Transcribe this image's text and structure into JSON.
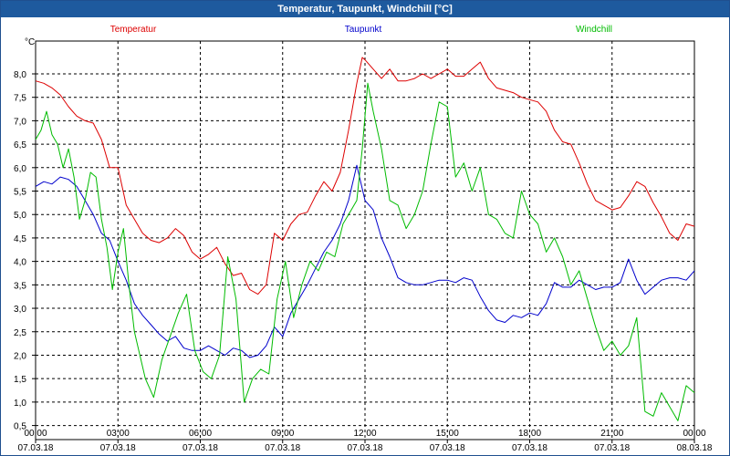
{
  "window": {
    "title": "Temperatur, Taupunkt, Windchill [°C]"
  },
  "chart_data": {
    "type": "line",
    "title": "Temperatur, Taupunkt, Windchill [°C]",
    "ylabel": "°C",
    "xlabel": "",
    "ylim": [
      0.2,
      8.7
    ],
    "xlim": [
      0,
      24
    ],
    "grid": true,
    "legend_placement": "top",
    "y_ticks": [
      "0,5",
      "1,0",
      "1,5",
      "2,0",
      "2,5",
      "3,0",
      "3,5",
      "4,0",
      "4,5",
      "5,0",
      "5,5",
      "6,0",
      "6,5",
      "7,0",
      "7,5",
      "8,0"
    ],
    "x_ticks": [
      {
        "time": "00:00",
        "date": "07.03.18"
      },
      {
        "time": "03:00",
        "date": "07.03.18"
      },
      {
        "time": "06:00",
        "date": "07.03.18"
      },
      {
        "time": "09:00",
        "date": "07.03.18"
      },
      {
        "time": "12:00",
        "date": "07.03.18"
      },
      {
        "time": "15:00",
        "date": "07.03.18"
      },
      {
        "time": "18:00",
        "date": "07.03.18"
      },
      {
        "time": "21:00",
        "date": "07.03.18"
      },
      {
        "time": "00:00",
        "date": "08.03.18"
      }
    ],
    "series": [
      {
        "name": "Temperatur",
        "color": "#dd0000",
        "x": [
          0,
          0.3,
          0.6,
          0.9,
          1.2,
          1.5,
          1.8,
          2.1,
          2.4,
          2.7,
          3.0,
          3.3,
          3.6,
          3.9,
          4.2,
          4.5,
          4.8,
          5.1,
          5.4,
          5.7,
          6.0,
          6.3,
          6.6,
          6.9,
          7.2,
          7.5,
          7.8,
          8.1,
          8.4,
          8.7,
          9.0,
          9.3,
          9.6,
          9.9,
          10.2,
          10.5,
          10.8,
          11.1,
          11.4,
          11.7,
          11.9,
          12.0,
          12.3,
          12.6,
          12.9,
          13.2,
          13.5,
          13.8,
          14.1,
          14.4,
          14.7,
          15.0,
          15.3,
          15.6,
          15.9,
          16.2,
          16.5,
          16.8,
          17.1,
          17.4,
          17.7,
          18.0,
          18.3,
          18.6,
          18.9,
          19.2,
          19.5,
          19.8,
          20.1,
          20.4,
          20.7,
          21.0,
          21.3,
          21.6,
          21.9,
          22.2,
          22.5,
          22.8,
          23.1,
          23.4,
          23.7,
          24.0
        ],
        "values": [
          7.85,
          7.8,
          7.7,
          7.55,
          7.3,
          7.1,
          7.0,
          6.95,
          6.6,
          6.0,
          6.0,
          5.2,
          4.9,
          4.6,
          4.45,
          4.4,
          4.5,
          4.7,
          4.55,
          4.2,
          4.05,
          4.15,
          4.3,
          3.95,
          3.7,
          3.75,
          3.4,
          3.3,
          3.5,
          4.6,
          4.45,
          4.8,
          5.0,
          5.05,
          5.4,
          5.7,
          5.5,
          5.9,
          6.8,
          7.8,
          8.35,
          8.3,
          8.1,
          7.9,
          8.1,
          7.85,
          7.85,
          7.9,
          8.0,
          7.9,
          8.0,
          8.1,
          7.95,
          7.95,
          8.1,
          8.25,
          7.9,
          7.7,
          7.65,
          7.6,
          7.5,
          7.45,
          7.4,
          7.2,
          6.8,
          6.55,
          6.5,
          6.1,
          5.65,
          5.3,
          5.2,
          5.1,
          5.15,
          5.4,
          5.7,
          5.6,
          5.25,
          4.95,
          4.6,
          4.45,
          4.8,
          4.75
        ]
      },
      {
        "name": "Taupunkt",
        "color": "#0000cc",
        "x": [
          0,
          0.3,
          0.6,
          0.9,
          1.2,
          1.5,
          1.8,
          2.1,
          2.4,
          2.7,
          3.0,
          3.3,
          3.6,
          3.9,
          4.2,
          4.5,
          4.8,
          5.1,
          5.4,
          5.7,
          6.0,
          6.3,
          6.6,
          6.9,
          7.2,
          7.5,
          7.8,
          8.1,
          8.4,
          8.7,
          9.0,
          9.3,
          9.6,
          9.9,
          10.2,
          10.5,
          10.8,
          11.1,
          11.4,
          11.7,
          12.0,
          12.3,
          12.6,
          12.9,
          13.2,
          13.5,
          13.8,
          14.1,
          14.4,
          14.7,
          15.0,
          15.3,
          15.6,
          15.9,
          16.2,
          16.5,
          16.8,
          17.1,
          17.4,
          17.7,
          18.0,
          18.3,
          18.6,
          18.9,
          19.2,
          19.5,
          19.8,
          20.1,
          20.4,
          20.7,
          21.0,
          21.3,
          21.6,
          21.9,
          22.2,
          22.5,
          22.8,
          23.1,
          23.4,
          23.7,
          24.0
        ],
        "values": [
          5.6,
          5.7,
          5.65,
          5.8,
          5.75,
          5.6,
          5.3,
          5.0,
          4.6,
          4.45,
          4.0,
          3.6,
          3.1,
          2.85,
          2.65,
          2.45,
          2.3,
          2.4,
          2.15,
          2.1,
          2.1,
          2.2,
          2.1,
          2.0,
          2.15,
          2.1,
          1.95,
          2.0,
          2.2,
          2.6,
          2.4,
          2.9,
          3.2,
          3.5,
          3.85,
          4.2,
          4.45,
          4.8,
          5.3,
          6.05,
          5.3,
          5.1,
          4.5,
          4.1,
          3.65,
          3.55,
          3.5,
          3.5,
          3.55,
          3.6,
          3.6,
          3.55,
          3.65,
          3.6,
          3.25,
          2.95,
          2.75,
          2.7,
          2.85,
          2.8,
          2.9,
          2.85,
          3.1,
          3.55,
          3.45,
          3.45,
          3.6,
          3.5,
          3.4,
          3.45,
          3.45,
          3.55,
          4.05,
          3.6,
          3.3,
          3.45,
          3.6,
          3.65,
          3.65,
          3.6,
          3.8
        ]
      },
      {
        "name": "Windchill",
        "color": "#00bb00",
        "x": [
          0,
          0.2,
          0.4,
          0.6,
          0.8,
          1.0,
          1.2,
          1.4,
          1.6,
          1.8,
          2.0,
          2.2,
          2.4,
          2.6,
          2.8,
          3.0,
          3.2,
          3.4,
          3.6,
          3.8,
          4.0,
          4.3,
          4.6,
          4.9,
          5.2,
          5.5,
          5.8,
          6.1,
          6.4,
          6.7,
          7.0,
          7.3,
          7.6,
          7.9,
          8.2,
          8.5,
          8.8,
          9.1,
          9.4,
          9.7,
          10.0,
          10.3,
          10.6,
          10.9,
          11.2,
          11.5,
          11.7,
          11.9,
          12.1,
          12.3,
          12.6,
          12.9,
          13.2,
          13.5,
          13.8,
          14.1,
          14.4,
          14.7,
          15.0,
          15.3,
          15.6,
          15.9,
          16.2,
          16.5,
          16.8,
          17.1,
          17.4,
          17.7,
          18.0,
          18.3,
          18.6,
          18.9,
          19.2,
          19.5,
          19.8,
          20.1,
          20.4,
          20.7,
          21.0,
          21.3,
          21.6,
          21.9,
          22.2,
          22.5,
          22.8,
          23.1,
          23.4,
          23.7,
          24.0
        ],
        "values": [
          6.6,
          6.8,
          7.2,
          6.7,
          6.5,
          6.0,
          6.4,
          5.8,
          4.9,
          5.3,
          5.9,
          5.8,
          4.9,
          4.3,
          3.4,
          4.2,
          4.7,
          3.5,
          2.5,
          2.0,
          1.5,
          1.1,
          1.9,
          2.4,
          2.9,
          3.3,
          2.1,
          1.65,
          1.5,
          2.0,
          4.1,
          3.2,
          1.0,
          1.5,
          1.7,
          1.6,
          3.2,
          4.0,
          2.8,
          3.5,
          4.0,
          3.8,
          4.2,
          4.1,
          4.8,
          5.1,
          5.3,
          6.4,
          7.8,
          7.2,
          6.4,
          5.3,
          5.2,
          4.7,
          5.0,
          5.5,
          6.5,
          7.4,
          7.3,
          5.8,
          6.1,
          5.5,
          6.0,
          5.0,
          4.9,
          4.6,
          4.5,
          5.5,
          5.0,
          4.8,
          4.2,
          4.5,
          4.1,
          3.5,
          3.8,
          3.2,
          2.6,
          2.1,
          2.3,
          2.0,
          2.2,
          2.8,
          0.8,
          0.7,
          1.2,
          0.9,
          0.6,
          1.35,
          1.2
        ]
      }
    ]
  }
}
